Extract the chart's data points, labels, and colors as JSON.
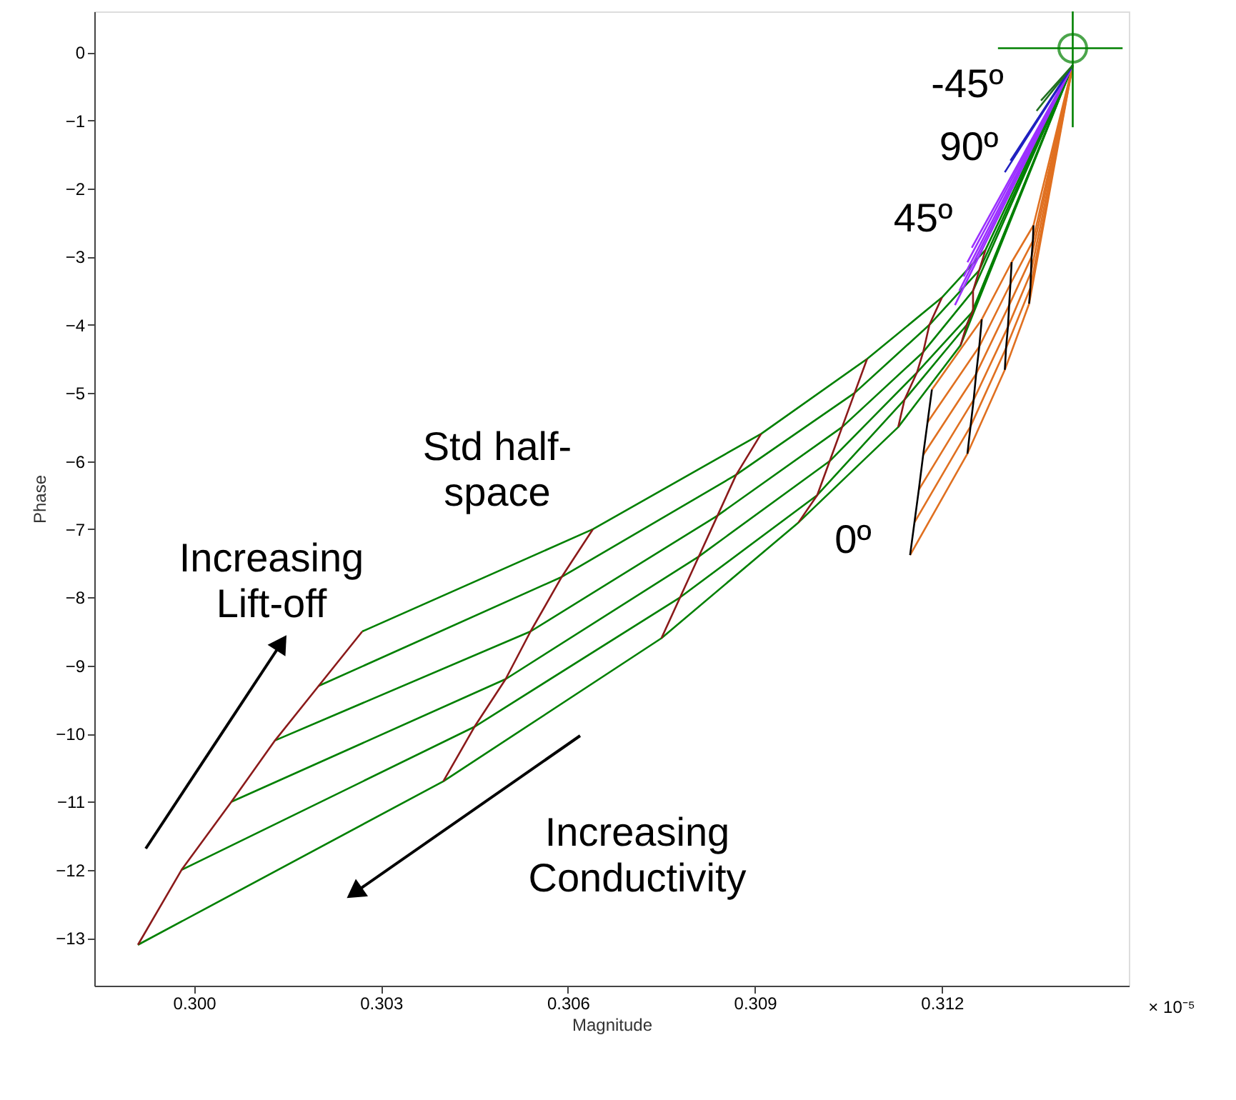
{
  "chart_data": {
    "type": "line",
    "xlabel": "Magnitude",
    "ylabel": "Phase",
    "xlim": [
      0.2984,
      0.315
    ],
    "ylim": [
      -13.7,
      0.6
    ],
    "xticks": [
      {
        "value": 0.3,
        "label": "0.300"
      },
      {
        "value": 0.303,
        "label": "0.303"
      },
      {
        "value": 0.306,
        "label": "0.306"
      },
      {
        "value": 0.309,
        "label": "0.309"
      },
      {
        "value": 0.312,
        "label": "0.312"
      }
    ],
    "yticks": [
      -13,
      -12,
      -11,
      -10,
      -9,
      -8,
      -7,
      -6,
      -5,
      -4,
      -3,
      -2,
      -1,
      0
    ],
    "grid": false,
    "line_style": "solid",
    "annotations": [
      "Std half-\nspace",
      "Increasing\nLift-off",
      "Increasing\nConductivity",
      "0º",
      "45º",
      "90º",
      "-45º",
      "× 10⁻⁵"
    ],
    "series": [
      {
        "color": "#008000",
        "x": [
          0.2991,
          0.304,
          0.3075,
          0.3097,
          0.3113,
          0.3123,
          0.3141
        ],
        "values": [
          -13.1,
          -10.7,
          -8.6,
          -6.9,
          -5.5,
          -4.3,
          -0.19
        ]
      },
      {
        "color": "#008000",
        "x": [
          0.2998,
          0.3045,
          0.3078,
          0.31,
          0.3114,
          0.3124,
          0.3141
        ],
        "values": [
          -12.0,
          -9.9,
          -8.0,
          -6.5,
          -5.1,
          -4.0,
          -0.19
        ]
      },
      {
        "color": "#008000",
        "x": [
          0.3006,
          0.305,
          0.3081,
          0.3102,
          0.3116,
          0.3125,
          0.3141
        ],
        "values": [
          -11.0,
          -9.2,
          -7.4,
          -6.0,
          -4.7,
          -3.8,
          -0.19
        ]
      },
      {
        "color": "#008000",
        "x": [
          0.3013,
          0.3054,
          0.3084,
          0.3104,
          0.3117,
          0.3125,
          0.3141
        ],
        "values": [
          -10.1,
          -8.5,
          -6.8,
          -5.5,
          -4.4,
          -3.5,
          -0.19
        ]
      },
      {
        "color": "#008000",
        "x": [
          0.302,
          0.3059,
          0.3087,
          0.3106,
          0.3118,
          0.3126,
          0.3141
        ],
        "values": [
          -9.3,
          -7.7,
          -6.2,
          -5.0,
          -4.0,
          -3.2,
          -0.19
        ]
      },
      {
        "color": "#008000",
        "x": [
          0.3027,
          0.3064,
          0.3091,
          0.3108,
          0.312,
          0.3127,
          0.3141
        ],
        "values": [
          -8.5,
          -7.0,
          -5.6,
          -4.5,
          -3.6,
          -2.9,
          -0.19
        ]
      },
      {
        "color": "#8b1a1a",
        "x": [
          0.2991,
          0.2998,
          0.3006,
          0.3013,
          0.302,
          0.3027
        ],
        "values": [
          -13.1,
          -12.0,
          -11.0,
          -10.1,
          -9.3,
          -8.5
        ]
      },
      {
        "color": "#8b1a1a",
        "x": [
          0.304,
          0.3045,
          0.305,
          0.3054,
          0.3059,
          0.3064
        ],
        "values": [
          -10.7,
          -9.9,
          -9.2,
          -8.5,
          -7.7,
          -7.0
        ]
      },
      {
        "color": "#8b1a1a",
        "x": [
          0.3075,
          0.3078,
          0.3081,
          0.3084,
          0.3087,
          0.3091
        ],
        "values": [
          -8.6,
          -8.0,
          -7.4,
          -6.8,
          -6.2,
          -5.6
        ]
      },
      {
        "color": "#8b1a1a",
        "x": [
          0.3097,
          0.31,
          0.3102,
          0.3104,
          0.3106,
          0.3108
        ],
        "values": [
          -6.9,
          -6.5,
          -6.0,
          -5.5,
          -5.0,
          -4.5
        ]
      },
      {
        "color": "#8b1a1a",
        "x": [
          0.3113,
          0.3114,
          0.3116,
          0.3117,
          0.3118,
          0.312
        ],
        "values": [
          -5.5,
          -5.1,
          -4.7,
          -4.4,
          -4.0,
          -3.6
        ]
      },
      {
        "color": "#8b1a1a",
        "x": [
          0.3123,
          0.3124,
          0.3125,
          0.3125,
          0.3126,
          0.3127
        ],
        "values": [
          -4.3,
          -4.0,
          -3.8,
          -3.5,
          -3.2,
          -2.9
        ]
      },
      {
        "color": "#e07020",
        "x": [
          0.31149,
          0.31241,
          0.31301,
          0.3134,
          0.3141
        ],
        "values": [
          -7.38,
          -5.89,
          -4.66,
          -3.69,
          -0.19
        ]
      },
      {
        "color": "#e07020",
        "x": [
          0.31156,
          0.31246,
          0.31303,
          0.31342,
          0.3141
        ],
        "values": [
          -6.9,
          -5.49,
          -4.34,
          -3.46,
          -0.19
        ]
      },
      {
        "color": "#e07020",
        "x": [
          0.31163,
          0.31251,
          0.31306,
          0.31343,
          0.3141
        ],
        "values": [
          -6.42,
          -5.1,
          -4.03,
          -3.23,
          -0.19
        ]
      },
      {
        "color": "#e07020",
        "x": [
          0.3117,
          0.31255,
          0.31308,
          0.31344,
          0.3141
        ],
        "values": [
          -5.91,
          -4.72,
          -3.71,
          -3.0,
          -0.19
        ]
      },
      {
        "color": "#e07020",
        "x": [
          0.31177,
          0.3126,
          0.3131,
          0.31346,
          0.3141
        ],
        "values": [
          -5.43,
          -4.32,
          -3.4,
          -2.77,
          -0.19
        ]
      },
      {
        "color": "#e07020",
        "x": [
          0.31184,
          0.31264,
          0.31312,
          0.31347,
          0.3141
        ],
        "values": [
          -4.95,
          -3.92,
          -3.08,
          -2.54,
          -0.19
        ]
      },
      {
        "color": "#000000",
        "x": [
          0.31149,
          0.31156,
          0.31163,
          0.3117,
          0.31177,
          0.31184
        ],
        "values": [
          -7.38,
          -6.9,
          -6.42,
          -5.91,
          -5.43,
          -4.95
        ]
      },
      {
        "color": "#000000",
        "x": [
          0.31241,
          0.31246,
          0.31251,
          0.31255,
          0.3126,
          0.31264
        ],
        "values": [
          -5.89,
          -5.49,
          -5.1,
          -4.72,
          -4.32,
          -3.92
        ]
      },
      {
        "color": "#000000",
        "x": [
          0.31301,
          0.31303,
          0.31306,
          0.31308,
          0.3131,
          0.31312
        ],
        "values": [
          -4.66,
          -4.34,
          -4.03,
          -3.71,
          -3.4,
          -3.08
        ]
      },
      {
        "color": "#000000",
        "x": [
          0.3134,
          0.31342,
          0.31343,
          0.31344,
          0.31346,
          0.31347
        ],
        "values": [
          -3.69,
          -3.46,
          -3.23,
          -3.0,
          -2.77,
          -2.54
        ]
      },
      {
        "color": "#9b30ff",
        "x": [
          0.31221,
          0.3141
        ],
        "values": [
          -3.71,
          -0.19
        ]
      },
      {
        "color": "#9b30ff",
        "x": [
          0.31228,
          0.3141
        ],
        "values": [
          -3.5,
          -0.19
        ]
      },
      {
        "color": "#9b30ff",
        "x": [
          0.31235,
          0.3141
        ],
        "values": [
          -3.29,
          -0.19
        ]
      },
      {
        "color": "#9b30ff",
        "x": [
          0.31241,
          0.3141
        ],
        "values": [
          -3.08,
          -0.19
        ]
      },
      {
        "color": "#9b30ff",
        "x": [
          0.31248,
          0.3141
        ],
        "values": [
          -2.87,
          -0.19
        ]
      },
      {
        "color": "#2020c0",
        "x": [
          0.31301,
          0.3141
        ],
        "values": [
          -1.76,
          -0.19
        ]
      },
      {
        "color": "#2020c0",
        "x": [
          0.3131,
          0.3141
        ],
        "values": [
          -1.59,
          -0.19
        ]
      },
      {
        "color": "#2020c0",
        "x": [
          0.31322,
          0.3141
        ],
        "values": [
          -1.43,
          -0.19
        ]
      },
      {
        "color": "#207020",
        "x": [
          0.31352,
          0.3141
        ],
        "values": [
          -0.86,
          -0.19
        ]
      },
      {
        "color": "#207020",
        "x": [
          0.31359,
          0.3141
        ],
        "values": [
          -0.71,
          -0.19
        ]
      },
      {
        "color": "#008000",
        "x": [
          0.3129,
          0.3149
        ],
        "values": [
          0.06,
          0.06
        ]
      },
      {
        "color": "#008000",
        "x": [
          0.3141,
          0.3141
        ],
        "values": [
          0.6,
          -1.1
        ]
      },
      {
        "type": "scatter",
        "marker": "circle",
        "color": "#008000",
        "x": [
          0.3141
        ],
        "values": [
          0.06
        ]
      }
    ]
  }
}
